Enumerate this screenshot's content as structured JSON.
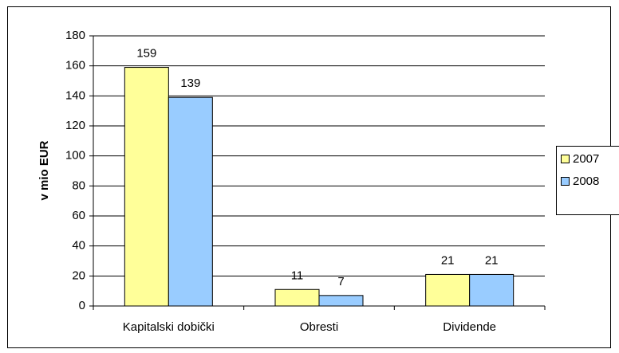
{
  "chart_data": {
    "type": "bar",
    "y_label": "v mio  EUR",
    "categories": [
      "Kapitalski dobički",
      "Obresti",
      "Dividende"
    ],
    "series": [
      {
        "name": "2007",
        "color": "#ffff99",
        "values": [
          159,
          11,
          21
        ]
      },
      {
        "name": "2008",
        "color": "#99ccff",
        "values": [
          139,
          7,
          21
        ]
      }
    ],
    "ylim": [
      0,
      180
    ],
    "yticks": [
      0,
      20,
      40,
      60,
      80,
      100,
      120,
      140,
      160,
      180
    ],
    "grid": true,
    "legend": "right"
  }
}
